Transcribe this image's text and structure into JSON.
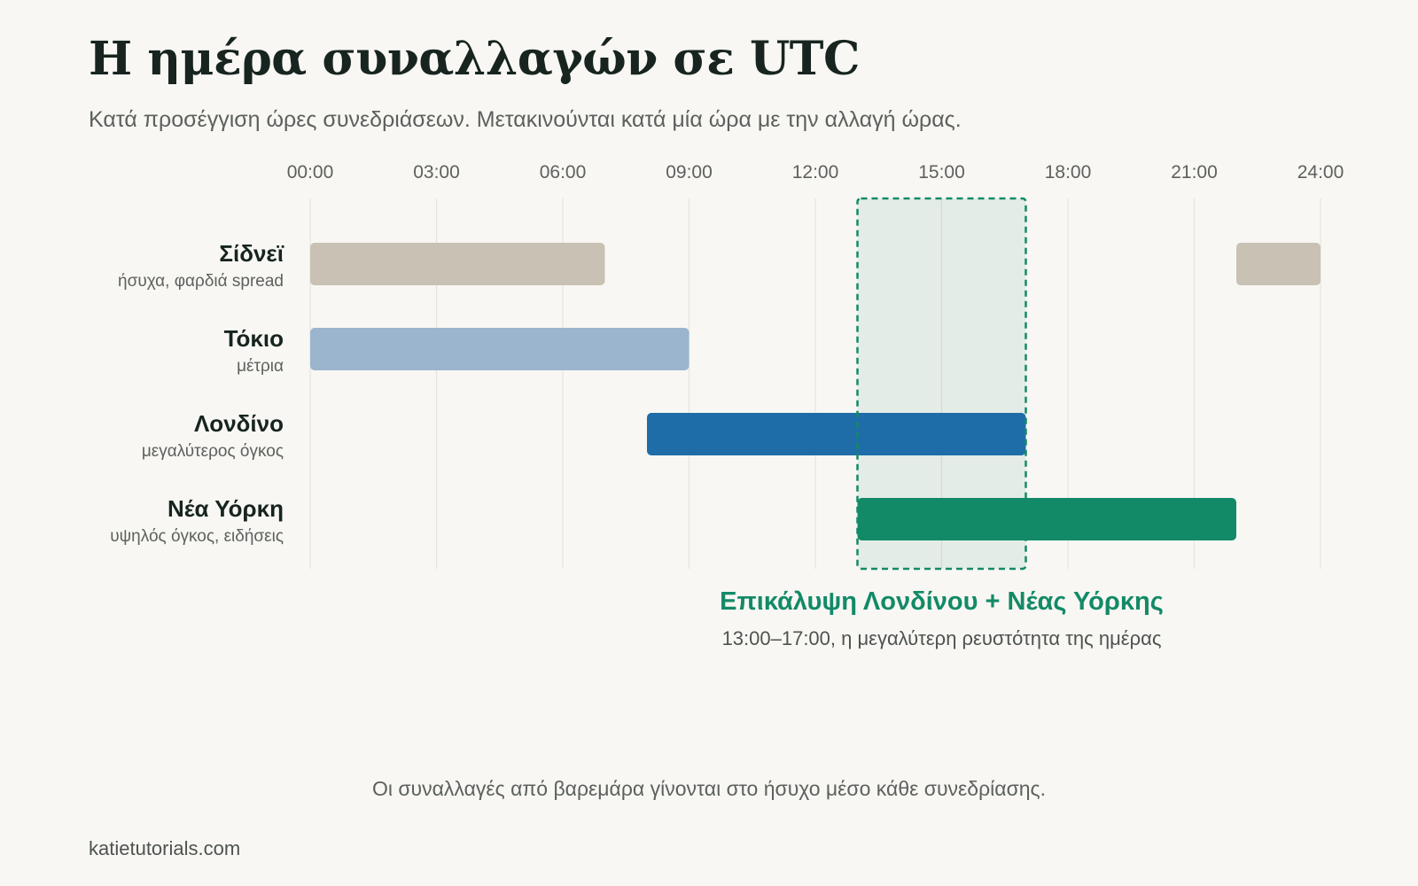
{
  "header": {
    "title": "Η ημέρα συναλλαγών σε UTC",
    "subtitle": "Κατά προσέγγιση ώρες συνεδριάσεων. Μετακινούνται κατά μία ώρα με την αλλαγή ώρας."
  },
  "chart_data": {
    "type": "bar",
    "orientation": "horizontal-range",
    "title": "Η ημέρα συναλλαγών σε UTC",
    "subtitle": "Κατά προσέγγιση ώρες συνεδριάσεων. Μετακινούνται κατά μία ώρα με την αλλαγή ώρας.",
    "x_unit": "hours UTC",
    "xlim": [
      0,
      24
    ],
    "x_ticks": [
      0,
      3,
      6,
      9,
      12,
      15,
      18,
      21,
      24
    ],
    "x_tick_labels": [
      "00:00",
      "03:00",
      "06:00",
      "09:00",
      "12:00",
      "15:00",
      "18:00",
      "21:00",
      "24:00"
    ],
    "grid": "vertical",
    "sessions": [
      {
        "name": "Σίδνεϊ",
        "note": "ήσυχα, φαρδιά spread",
        "color": "#c9c1b3",
        "ranges": [
          [
            0,
            7
          ],
          [
            22,
            24
          ]
        ]
      },
      {
        "name": "Τόκιο",
        "note": "μέτρια",
        "color": "#9bb5cf",
        "ranges": [
          [
            0,
            9
          ]
        ]
      },
      {
        "name": "Λονδίνο",
        "note": "μεγαλύτερος όγκος",
        "color": "#1f6da8",
        "ranges": [
          [
            8,
            17
          ]
        ]
      },
      {
        "name": "Νέα Υόρκη",
        "note": "υψηλός όγκος, ειδήσεις",
        "color": "#138a67",
        "ranges": [
          [
            13,
            22
          ]
        ]
      }
    ],
    "overlap": {
      "start": 13,
      "end": 17,
      "label": "Επικάλυψη Λονδίνου + Νέας Υόρκης",
      "sublabel": "13:00–17:00, η μεγαλύτερη ρευστότητα της ημέρας",
      "color": "#138a67"
    }
  },
  "footer": {
    "note": "Οι συναλλαγές από βαρεμάρα γίνονται στο ήσυχο μέσο κάθε συνεδρίασης.",
    "source": "katietutorials.com"
  }
}
